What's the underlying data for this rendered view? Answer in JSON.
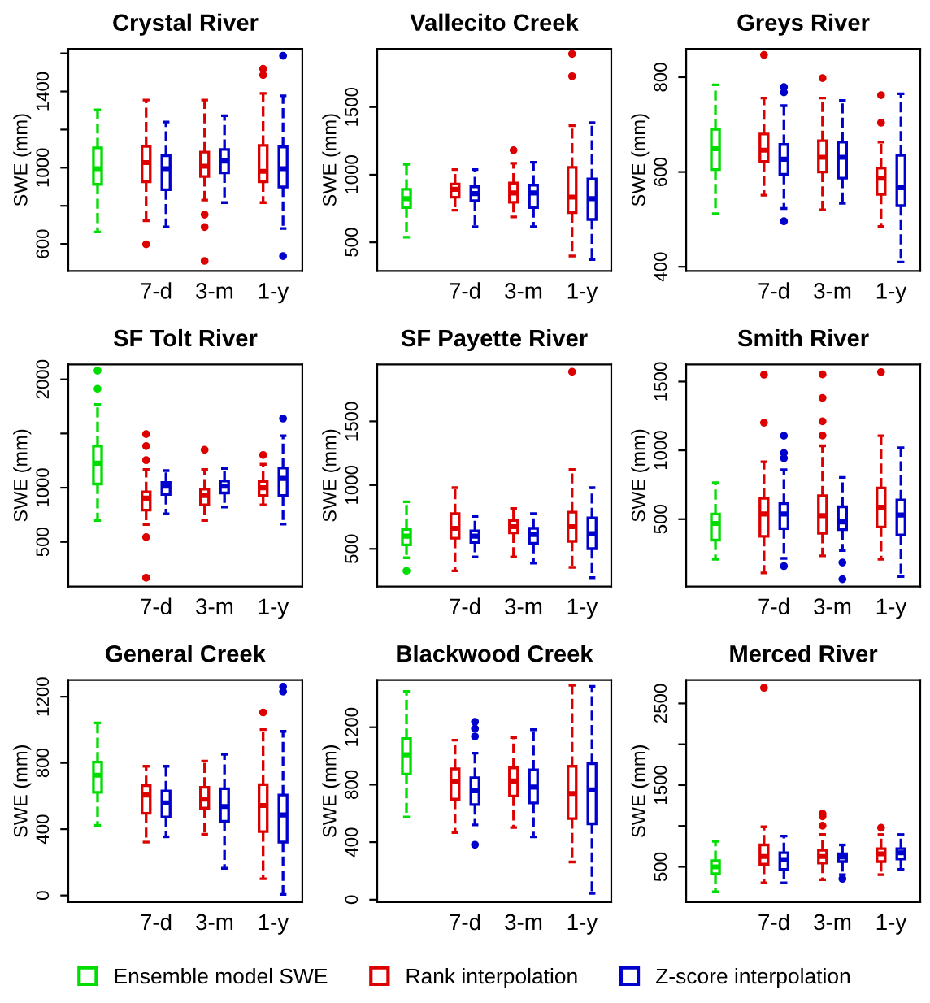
{
  "chart_data": [
    {
      "type": "box",
      "title": "Crystal River",
      "ylabel": "SWE (mm)",
      "categories": [
        null,
        "7-d",
        "3-m",
        "1-y"
      ],
      "ylim": [
        458,
        1624
      ],
      "yticks": [
        600,
        {
          "value": 800,
          "label": null
        },
        1000,
        {
          "value": 1200,
          "label": null
        },
        1400,
        {
          "value": 1600,
          "label": null
        }
      ],
      "legend": "bottom",
      "line_style": "dashed",
      "series": [
        {
          "name": "Ensemble model SWE",
          "color": "#00dd00",
          "boxes": [
            {
              "low": 663,
              "q1": 913,
              "median": 995,
              "q3": 1104,
              "high": 1303
            },
            null,
            null,
            null
          ]
        },
        {
          "name": "Rank interpolation",
          "color": "#dd0000",
          "boxes": [
            null,
            {
              "low": 722,
              "q1": 926,
              "median": 1027,
              "q3": 1112,
              "high": 1355,
              "outliers": [
                598
              ]
            },
            {
              "low": 830,
              "q1": 954,
              "median": 1008,
              "q3": 1082,
              "high": 1355,
              "outliers": [
                754,
                689,
                511
              ]
            },
            {
              "low": 817,
              "q1": 926,
              "median": 981,
              "q3": 1117,
              "high": 1390,
              "outliers": [
                1486,
                1519
              ]
            }
          ]
        },
        {
          "name": "Z-score interpolation",
          "color": "#0000cc",
          "boxes": [
            null,
            {
              "low": 689,
              "q1": 885,
              "median": 995,
              "q3": 1063,
              "high": 1240
            },
            {
              "low": 817,
              "q1": 973,
              "median": 1035,
              "q3": 1096,
              "high": 1273
            },
            {
              "low": 681,
              "q1": 899,
              "median": 995,
              "q3": 1109,
              "high": 1377,
              "outliers": [
                1587,
                536
              ]
            }
          ]
        }
      ]
    },
    {
      "type": "box",
      "title": "Vallecito Creek",
      "ylabel": "SWE (mm)",
      "categories": [
        null,
        "7-d",
        "3-m",
        "1-y"
      ],
      "ylim": [
        288,
        1931
      ],
      "yticks": [
        500,
        1000,
        1500
      ],
      "line_style": "dashed",
      "series": [
        {
          "color": "#00dd00",
          "boxes": [
            {
              "low": 538,
              "q1": 757,
              "median": 823,
              "q3": 892,
              "high": 1077
            },
            null,
            null,
            null
          ]
        },
        {
          "color": "#dd0000",
          "boxes": [
            null,
            {
              "low": 738,
              "q1": 834,
              "median": 892,
              "q3": 931,
              "high": 1038
            },
            {
              "low": 688,
              "q1": 796,
              "median": 865,
              "q3": 938,
              "high": 1085,
              "outliers": [
                1181
              ]
            },
            {
              "low": 399,
              "q1": 719,
              "median": 834,
              "q3": 1054,
              "high": 1362,
              "outliers": [
                1728,
                1893
              ]
            }
          ]
        },
        {
          "color": "#0000cc",
          "boxes": [
            null,
            {
              "low": 615,
              "q1": 808,
              "median": 861,
              "q3": 911,
              "high": 1038
            },
            {
              "low": 615,
              "q1": 757,
              "median": 865,
              "q3": 923,
              "high": 1092
            },
            {
              "low": 372,
              "q1": 669,
              "median": 823,
              "q3": 969,
              "high": 1385
            }
          ]
        }
      ]
    },
    {
      "type": "box",
      "title": "Greys River",
      "ylabel": "SWE (mm)",
      "categories": [
        null,
        "7-d",
        "3-m",
        "1-y"
      ],
      "ylim": [
        391,
        860
      ],
      "yticks": [
        400,
        600,
        800
      ],
      "line_style": "dashed",
      "series": [
        {
          "color": "#00dd00",
          "boxes": [
            {
              "low": 512,
              "q1": 605,
              "median": 649,
              "q3": 690,
              "high": 784
            },
            null,
            null,
            null
          ]
        },
        {
          "color": "#dd0000",
          "boxes": [
            null,
            {
              "low": 551,
              "q1": 622,
              "median": 646,
              "q3": 680,
              "high": 756,
              "outliers": [
                847
              ]
            },
            {
              "low": 520,
              "q1": 600,
              "median": 631,
              "q3": 666,
              "high": 756,
              "outliers": [
                798
              ]
            },
            {
              "low": 485,
              "q1": 553,
              "median": 587,
              "q3": 608,
              "high": 663,
              "outliers": [
                704,
                762
              ]
            }
          ]
        },
        {
          "color": "#0000cc",
          "boxes": [
            null,
            {
              "low": 523,
              "q1": 595,
              "median": 627,
              "q3": 658,
              "high": 740,
              "outliers": [
                768,
                779,
                496
              ]
            },
            {
              "low": 534,
              "q1": 587,
              "median": 631,
              "q3": 663,
              "high": 751
            },
            {
              "low": 410,
              "q1": 529,
              "median": 567,
              "q3": 635,
              "high": 765
            }
          ]
        }
      ]
    },
    {
      "type": "box",
      "title": "SF Tolt River",
      "ylabel": "SWE (mm)",
      "categories": [
        null,
        "7-d",
        "3-m",
        "1-y"
      ],
      "ylim": [
        88,
        2138
      ],
      "yticks": [
        500,
        1000,
        {
          "value": 1500,
          "label": null
        },
        2000
      ],
      "line_style": "dashed",
      "series": [
        {
          "color": "#00dd00",
          "boxes": [
            {
              "low": 698,
              "q1": 1034,
              "median": 1226,
              "q3": 1384,
              "high": 1768,
              "outliers": [
                1912,
                2080
              ]
            },
            null,
            null,
            null
          ]
        },
        {
          "color": "#dd0000",
          "boxes": [
            null,
            {
              "low": 660,
              "q1": 794,
              "median": 904,
              "q3": 962,
              "high": 1168,
              "outliers": [
                544,
                170,
                1254,
                1384,
                1494
              ]
            },
            {
              "low": 698,
              "q1": 842,
              "median": 928,
              "q3": 986,
              "high": 1168,
              "outliers": [
                1350
              ]
            },
            {
              "low": 842,
              "q1": 928,
              "median": 1000,
              "q3": 1058,
              "high": 1216,
              "outliers": [
                1302
              ]
            }
          ]
        },
        {
          "color": "#0000cc",
          "boxes": [
            null,
            {
              "low": 760,
              "q1": 938,
              "median": 1014,
              "q3": 1048,
              "high": 1158
            },
            {
              "low": 822,
              "q1": 952,
              "median": 1014,
              "q3": 1062,
              "high": 1178
            },
            {
              "low": 664,
              "q1": 928,
              "median": 1086,
              "q3": 1182,
              "high": 1480,
              "outliers": [
                1638
              ]
            }
          ]
        }
      ]
    },
    {
      "type": "box",
      "title": "SF Payette River",
      "ylabel": "SWE (mm)",
      "categories": [
        null,
        "7-d",
        "3-m",
        "1-y"
      ],
      "ylim": [
        204,
        1947
      ],
      "yticks": [
        500,
        1000,
        1500
      ],
      "line_style": "dashed",
      "series": [
        {
          "color": "#00dd00",
          "boxes": [
            {
              "low": 430,
              "q1": 531,
              "median": 600,
              "q3": 653,
              "high": 869,
              "outliers": [
                327
              ]
            },
            null,
            null,
            null
          ]
        },
        {
          "color": "#dd0000",
          "boxes": [
            null,
            {
              "low": 327,
              "q1": 584,
              "median": 661,
              "q3": 776,
              "high": 980
            },
            {
              "low": 437,
              "q1": 625,
              "median": 674,
              "q3": 723,
              "high": 816
            },
            {
              "low": 355,
              "q1": 559,
              "median": 674,
              "q3": 788,
              "high": 1122,
              "outliers": [
                1889
              ]
            }
          ]
        },
        {
          "color": "#0000cc",
          "boxes": [
            null,
            {
              "low": 437,
              "q1": 551,
              "median": 600,
              "q3": 641,
              "high": 755
            },
            {
              "low": 388,
              "q1": 543,
              "median": 612,
              "q3": 661,
              "high": 776
            },
            {
              "low": 274,
              "q1": 502,
              "median": 620,
              "q3": 743,
              "high": 980
            }
          ]
        }
      ]
    },
    {
      "type": "box",
      "title": "Smith River",
      "ylabel": "SWE (mm)",
      "categories": [
        null,
        "7-d",
        "3-m",
        "1-y"
      ],
      "ylim": [
        10,
        1625
      ],
      "yticks": [
        500,
        1000,
        1500
      ],
      "line_style": "dashed",
      "series": [
        {
          "color": "#00dd00",
          "boxes": [
            {
              "low": 208,
              "q1": 348,
              "median": 469,
              "q3": 538,
              "high": 765
            },
            null,
            null,
            null
          ]
        },
        {
          "color": "#dd0000",
          "boxes": [
            null,
            {
              "low": 109,
              "q1": 375,
              "median": 538,
              "q3": 651,
              "high": 917,
              "outliers": [
                1201,
                1550
              ]
            },
            {
              "low": 234,
              "q1": 397,
              "median": 526,
              "q3": 670,
              "high": 1033,
              "outliers": [
                1108,
                1211,
                1381,
                1552
              ]
            },
            {
              "low": 208,
              "q1": 443,
              "median": 587,
              "q3": 727,
              "high": 1106,
              "outliers": [
                1569
              ]
            }
          ]
        },
        {
          "color": "#0000cc",
          "boxes": [
            null,
            {
              "low": 215,
              "q1": 431,
              "median": 538,
              "q3": 613,
              "high": 860,
              "outliers": [
                159,
                943,
                981,
                1106
              ]
            },
            {
              "low": 272,
              "q1": 424,
              "median": 480,
              "q3": 590,
              "high": 803,
              "outliers": [
                185,
                64
              ]
            },
            {
              "low": 83,
              "q1": 386,
              "median": 530,
              "q3": 640,
              "high": 1019
            }
          ]
        }
      ]
    },
    {
      "type": "box",
      "title": "General Creek",
      "ylabel": "SWE (mm)",
      "categories": [
        null,
        "7-d",
        "3-m",
        "1-y"
      ],
      "ylim": [
        -41,
        1301
      ],
      "yticks": [
        0,
        400,
        800,
        1200
      ],
      "line_style": "dashed",
      "series": [
        {
          "color": "#00dd00",
          "boxes": [
            {
              "low": 423,
              "q1": 622,
              "median": 726,
              "q3": 805,
              "high": 1042
            },
            null,
            null,
            null
          ]
        },
        {
          "color": "#dd0000",
          "boxes": [
            null,
            {
              "low": 322,
              "q1": 496,
              "median": 606,
              "q3": 663,
              "high": 780
            },
            {
              "low": 369,
              "q1": 527,
              "median": 581,
              "q3": 653,
              "high": 811
            },
            {
              "low": 101,
              "q1": 385,
              "median": 543,
              "q3": 669,
              "high": 1001,
              "outliers": [
                1105
              ]
            }
          ]
        },
        {
          "color": "#0000cc",
          "boxes": [
            null,
            {
              "low": 354,
              "q1": 474,
              "median": 559,
              "q3": 631,
              "high": 780
            },
            {
              "low": 164,
              "q1": 448,
              "median": 537,
              "q3": 644,
              "high": 852
            },
            {
              "low": 6,
              "q1": 322,
              "median": 486,
              "q3": 606,
              "high": 991,
              "outliers": [
                1231,
                1260
              ]
            }
          ]
        }
      ]
    },
    {
      "type": "box",
      "title": "Blackwood Creek",
      "ylabel": "SWE (mm)",
      "categories": [
        null,
        "7-d",
        "3-m",
        "1-y"
      ],
      "ylim": [
        -18,
        1529
      ],
      "yticks": [
        0,
        400,
        800,
        1200
      ],
      "line_style": "dashed",
      "series": [
        {
          "color": "#00dd00",
          "boxes": [
            {
              "low": 575,
              "q1": 874,
              "median": 1008,
              "q3": 1121,
              "high": 1449
            },
            null,
            null,
            null
          ]
        },
        {
          "color": "#dd0000",
          "boxes": [
            null,
            {
              "low": 466,
              "q1": 699,
              "median": 819,
              "q3": 910,
              "high": 1110
            },
            {
              "low": 502,
              "q1": 721,
              "median": 826,
              "q3": 917,
              "high": 1128
            },
            {
              "low": 262,
              "q1": 564,
              "median": 739,
              "q3": 928,
              "high": 1492
            }
          ]
        },
        {
          "color": "#0000cc",
          "boxes": [
            null,
            {
              "low": 520,
              "q1": 662,
              "median": 757,
              "q3": 848,
              "high": 1019,
              "outliers": [
                1136,
                1190,
                1238,
                382
              ]
            },
            {
              "low": 437,
              "q1": 673,
              "median": 783,
              "q3": 903,
              "high": 1183
            },
            {
              "low": 44,
              "q1": 528,
              "median": 764,
              "q3": 946,
              "high": 1485
            }
          ]
        }
      ]
    },
    {
      "type": "box",
      "title": "Merced River",
      "ylabel": "SWE (mm)",
      "categories": [
        null,
        "7-d",
        "3-m",
        "1-y"
      ],
      "ylim": [
        67,
        2787
      ],
      "yticks": [
        500,
        {
          "value": 1000,
          "label": null
        },
        1500,
        {
          "value": 2000,
          "label": null
        },
        2500
      ],
      "line_style": "dashed",
      "series": [
        {
          "color": "#00dd00",
          "boxes": [
            {
              "low": 194,
              "q1": 417,
              "median": 500,
              "q3": 576,
              "high": 812
            },
            null,
            null,
            null
          ]
        },
        {
          "color": "#dd0000",
          "boxes": [
            null,
            {
              "low": 303,
              "q1": 532,
              "median": 627,
              "q3": 768,
              "high": 990,
              "outliers": [
                2691
              ]
            },
            {
              "low": 341,
              "q1": 545,
              "median": 627,
              "q3": 704,
              "high": 895,
              "outliers": [
                1003,
                1118,
                1150
              ]
            },
            {
              "low": 404,
              "q1": 564,
              "median": 659,
              "q3": 723,
              "high": 895,
              "outliers": [
                978
              ]
            }
          ]
        },
        {
          "color": "#0000cc",
          "boxes": [
            null,
            {
              "low": 303,
              "q1": 468,
              "median": 589,
              "q3": 672,
              "high": 876
            },
            {
              "low": 404,
              "q1": 564,
              "median": 621,
              "q3": 659,
              "high": 768,
              "outliers": [
                353
              ]
            },
            {
              "low": 468,
              "q1": 596,
              "median": 672,
              "q3": 723,
              "high": 895
            }
          ]
        }
      ]
    }
  ]
}
